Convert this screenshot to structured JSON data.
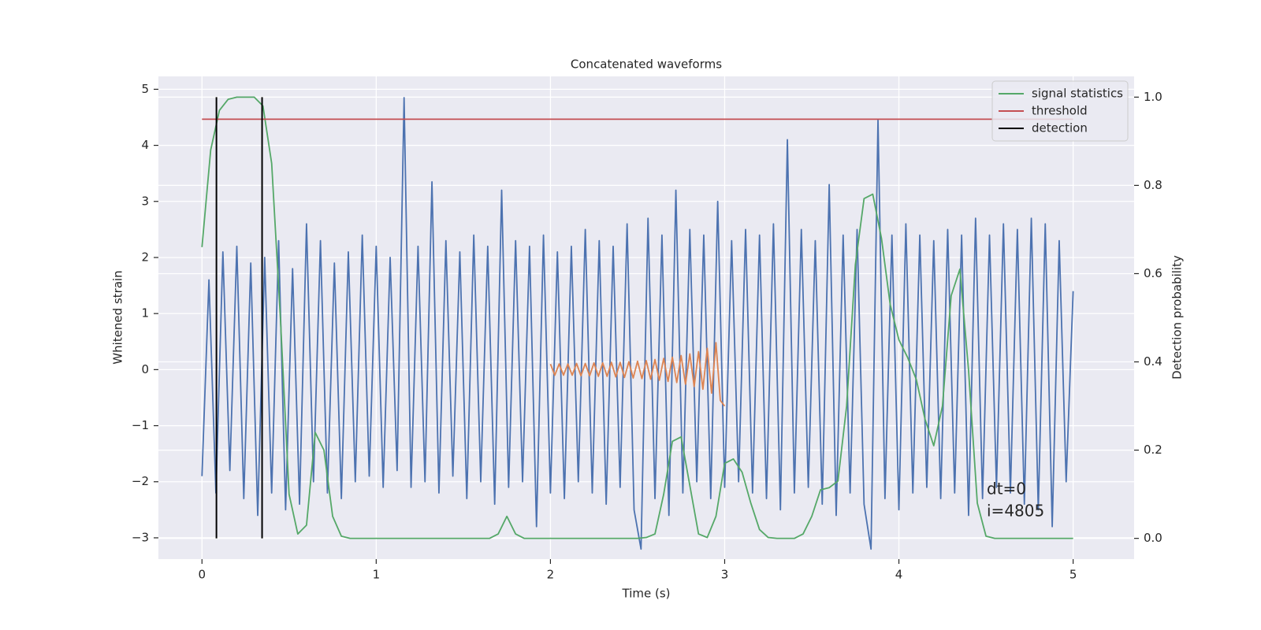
{
  "chart_data": {
    "type": "line",
    "title": "Concatenated waveforms",
    "xlabel": "Time (s)",
    "ylabel": "Whitened strain",
    "y2label": "Detection probability",
    "grid": true,
    "legend": "upper right",
    "annotations": [
      "dt=0",
      "i=4805"
    ],
    "xlim": [
      -0.25,
      5.35
    ],
    "ylim": [
      -3.38,
      5.23
    ],
    "y2lim": [
      -0.047,
      1.047
    ],
    "xticks": [
      0,
      1,
      2,
      3,
      4,
      5
    ],
    "yticks": [
      {
        "value": -3,
        "label": "−3"
      },
      {
        "value": -2,
        "label": "−2"
      },
      {
        "value": -1,
        "label": "−1"
      },
      0,
      1,
      2,
      3,
      4,
      5
    ],
    "y2ticks": [
      {
        "value": 0,
        "label": "0.0"
      },
      0.2,
      0.4,
      0.6,
      0.8,
      {
        "value": 1,
        "label": "1.0"
      }
    ],
    "series": [
      {
        "color": "#4c72b0",
        "kind": "line",
        "axis": "y",
        "x": [
          0,
          0.04,
          0.08,
          0.12,
          0.16,
          0.2,
          0.24,
          0.28,
          0.32,
          0.36,
          0.4,
          0.44,
          0.48,
          0.52,
          0.56,
          0.6,
          0.64,
          0.68,
          0.72,
          0.76,
          0.8,
          0.84,
          0.88,
          0.92,
          0.96,
          1,
          1.04,
          1.08,
          1.12,
          1.16,
          1.2,
          1.24,
          1.28,
          1.32,
          1.36,
          1.4,
          1.44,
          1.48,
          1.52,
          1.56,
          1.6,
          1.64,
          1.68,
          1.72,
          1.76,
          1.8,
          1.84,
          1.88,
          1.92,
          1.96,
          2,
          2.04,
          2.08,
          2.12,
          2.16,
          2.2,
          2.24,
          2.28,
          2.32,
          2.36,
          2.4,
          2.44,
          2.48,
          2.52,
          2.56,
          2.6,
          2.64,
          2.68,
          2.72,
          2.76,
          2.8,
          2.84,
          2.88,
          2.92,
          2.96,
          3,
          3.04,
          3.08,
          3.12,
          3.16,
          3.2,
          3.24,
          3.28,
          3.32,
          3.36,
          3.4,
          3.44,
          3.48,
          3.52,
          3.56,
          3.6,
          3.64,
          3.68,
          3.72,
          3.76,
          3.8,
          3.84,
          3.88,
          3.92,
          3.96,
          4,
          4.04,
          4.08,
          4.12,
          4.16,
          4.2,
          4.24,
          4.28,
          4.32,
          4.36,
          4.4,
          4.44,
          4.48,
          4.52,
          4.56,
          4.6,
          4.64,
          4.68,
          4.72,
          4.76,
          4.8,
          4.84,
          4.88,
          4.92,
          4.96,
          5
        ],
        "values": [
          -1.9,
          1.6,
          -2.2,
          2.1,
          -1.8,
          2.2,
          -2.3,
          1.9,
          -2.6,
          2.0,
          -2.2,
          2.3,
          -2.5,
          1.8,
          -2.4,
          2.6,
          -2.0,
          2.3,
          -2.2,
          1.9,
          -2.3,
          2.1,
          -2.0,
          2.4,
          -1.9,
          2.2,
          -2.1,
          2.0,
          -1.8,
          4.85,
          -2.1,
          2.2,
          -2.0,
          3.35,
          -2.2,
          2.3,
          -1.9,
          2.1,
          -2.3,
          2.4,
          -2.0,
          2.2,
          -2.4,
          3.2,
          -2.1,
          2.3,
          -2.0,
          2.2,
          -2.8,
          2.4,
          -2.2,
          2.1,
          -2.3,
          2.2,
          -2.0,
          2.5,
          -2.2,
          2.3,
          -2.4,
          2.2,
          -2.1,
          2.6,
          -2.5,
          -3.2,
          2.7,
          -2.3,
          2.4,
          -2.6,
          3.2,
          -2.2,
          2.5,
          -2.0,
          2.4,
          -2.3,
          3.0,
          -2.1,
          2.3,
          -2.0,
          2.5,
          -2.2,
          2.4,
          -2.3,
          2.6,
          -2.5,
          4.1,
          -2.2,
          2.5,
          -2.1,
          2.3,
          -2.4,
          3.3,
          -2.6,
          2.4,
          -2.2,
          2.5,
          -2.4,
          -3.2,
          4.45,
          -2.3,
          2.4,
          -2.5,
          2.6,
          -2.2,
          2.4,
          -2.1,
          2.3,
          -2.3,
          2.5,
          -2.2,
          2.4,
          -2.6,
          2.7,
          -2.3,
          2.4,
          -2.1,
          2.6,
          -2.2,
          2.5,
          -2.4,
          2.7,
          -2.5,
          2.6,
          -2.8,
          2.3,
          -2.0,
          1.4
        ]
      },
      {
        "color": "#dd8452",
        "kind": "line",
        "axis": "y",
        "x": [
          2,
          2.025,
          2.05,
          2.075,
          2.1,
          2.125,
          2.15,
          2.175,
          2.2,
          2.225,
          2.25,
          2.275,
          2.3,
          2.325,
          2.35,
          2.375,
          2.4,
          2.425,
          2.45,
          2.475,
          2.5,
          2.525,
          2.55,
          2.575,
          2.6,
          2.625,
          2.65,
          2.675,
          2.7,
          2.725,
          2.75,
          2.775,
          2.8,
          2.825,
          2.85,
          2.875,
          2.9,
          2.925,
          2.95,
          2.975,
          3
        ],
        "values": [
          0.1,
          -0.1,
          0.1,
          -0.1,
          0.1,
          -0.1,
          0.11,
          -0.11,
          0.11,
          -0.11,
          0.12,
          -0.12,
          0.12,
          -0.12,
          0.13,
          -0.13,
          0.13,
          -0.14,
          0.14,
          -0.15,
          0.15,
          -0.16,
          0.16,
          -0.17,
          0.18,
          -0.19,
          0.2,
          -0.21,
          0.22,
          -0.23,
          0.25,
          -0.26,
          0.28,
          -0.3,
          0.32,
          -0.35,
          0.38,
          -0.42,
          0.48,
          -0.55,
          -0.65
        ]
      },
      {
        "name": "signal statistics",
        "color": "#55a868",
        "kind": "line",
        "axis": "y2",
        "x": [
          0,
          0.05,
          0.1,
          0.15,
          0.2,
          0.25,
          0.3,
          0.35,
          0.4,
          0.45,
          0.5,
          0.55,
          0.6,
          0.65,
          0.7,
          0.75,
          0.8,
          0.85,
          0.9,
          0.95,
          1,
          1.05,
          1.1,
          1.15,
          1.2,
          1.25,
          1.3,
          1.35,
          1.4,
          1.45,
          1.5,
          1.55,
          1.6,
          1.65,
          1.7,
          1.75,
          1.8,
          1.85,
          1.9,
          1.95,
          2,
          2.05,
          2.1,
          2.15,
          2.2,
          2.25,
          2.3,
          2.35,
          2.4,
          2.45,
          2.5,
          2.55,
          2.6,
          2.65,
          2.7,
          2.75,
          2.8,
          2.85,
          2.9,
          2.95,
          3,
          3.05,
          3.1,
          3.15,
          3.2,
          3.25,
          3.3,
          3.35,
          3.4,
          3.45,
          3.5,
          3.55,
          3.6,
          3.65,
          3.7,
          3.75,
          3.8,
          3.85,
          3.9,
          3.95,
          4,
          4.05,
          4.1,
          4.15,
          4.2,
          4.25,
          4.3,
          4.35,
          4.4,
          4.45,
          4.5,
          4.55,
          4.6,
          4.65,
          4.7,
          4.75,
          4.8,
          4.85,
          4.9,
          4.95,
          5
        ],
        "values": [
          0.66,
          0.88,
          0.97,
          0.995,
          1.0,
          1.0,
          1.0,
          0.98,
          0.85,
          0.5,
          0.1,
          0.01,
          0.03,
          0.24,
          0.2,
          0.05,
          0.005,
          0,
          0,
          0,
          0,
          0,
          0,
          0,
          0,
          0,
          0,
          0,
          0,
          0,
          0,
          0,
          0,
          0,
          0.01,
          0.05,
          0.01,
          0,
          0,
          0,
          0,
          0,
          0,
          0,
          0,
          0,
          0,
          0,
          0,
          0,
          0,
          0.002,
          0.01,
          0.1,
          0.22,
          0.23,
          0.12,
          0.01,
          0.002,
          0.05,
          0.17,
          0.18,
          0.15,
          0.08,
          0.02,
          0.002,
          0,
          0,
          0,
          0.01,
          0.05,
          0.11,
          0.115,
          0.13,
          0.3,
          0.62,
          0.77,
          0.78,
          0.68,
          0.53,
          0.45,
          0.41,
          0.36,
          0.27,
          0.21,
          0.3,
          0.55,
          0.61,
          0.38,
          0.08,
          0.005,
          0,
          0,
          0,
          0,
          0,
          0,
          0,
          0,
          0,
          0
        ]
      },
      {
        "name": "threshold",
        "color": "#c44e52",
        "kind": "line",
        "axis": "y2",
        "x": [
          0,
          5
        ],
        "values": [
          0.95,
          0.95
        ]
      },
      {
        "name": "detection",
        "color": "#000000",
        "kind": "vline",
        "axis": "y2",
        "x": [
          0.083,
          0.345
        ],
        "ymin": 0,
        "ymax": 1
      }
    ]
  }
}
